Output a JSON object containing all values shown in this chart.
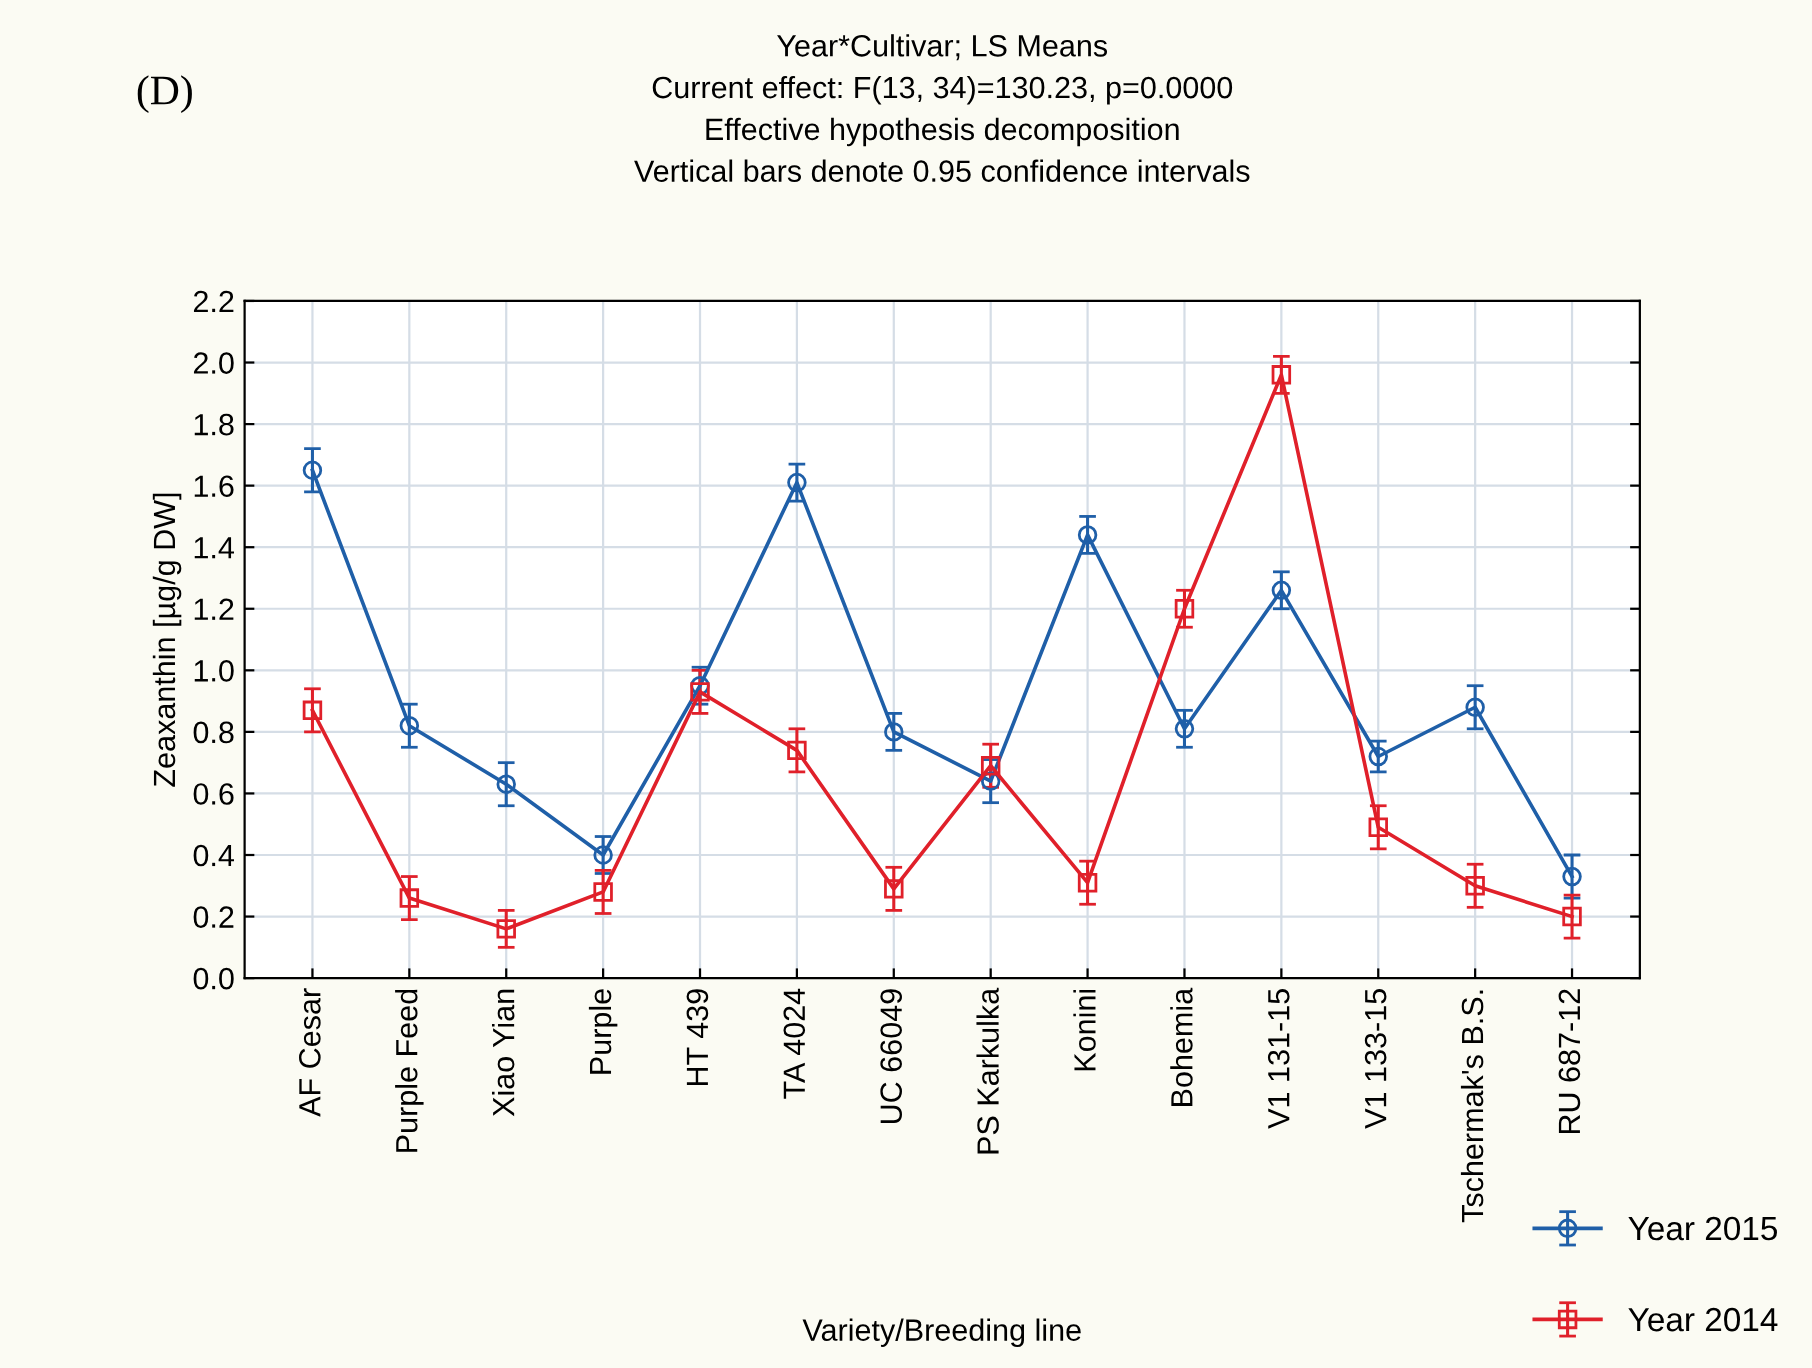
{
  "chart_data": {
    "type": "line",
    "title": "Year*Cultivar; LS Means\nCurrent effect: F(13, 34)=130.23, p=0.0000\nEffective hypothesis decomposition\nVertical bars denote 0.95 confidence intervals",
    "annotations": [
      "(D)"
    ],
    "xlabel": "Variety/Breeding line",
    "ylabel": "Zeaxanthin [µg/g DW]",
    "categories": [
      "AF Cesar",
      "Purple Feed",
      "Xiao Yian",
      "Purple",
      "HT 439",
      "TA 4024",
      "UC 66049",
      "PS Karkulka",
      "Konini",
      "Bohemia",
      "V1 131-15",
      "V1 133-15",
      "Tschermak's B.S.",
      "RU 687-12"
    ],
    "series": [
      {
        "name": "Year 2015",
        "color": "#1f5fa8",
        "marker": "circle",
        "values": [
          1.65,
          0.82,
          0.63,
          0.4,
          0.95,
          1.61,
          0.8,
          0.64,
          1.44,
          0.81,
          1.26,
          0.72,
          0.88,
          0.33
        ],
        "errors": [
          0.07,
          0.07,
          0.07,
          0.06,
          0.06,
          0.06,
          0.06,
          0.07,
          0.06,
          0.06,
          0.06,
          0.05,
          0.07,
          0.07
        ]
      },
      {
        "name": "Year 2014",
        "color": "#e0202a",
        "marker": "square",
        "values": [
          0.87,
          0.26,
          0.16,
          0.28,
          0.93,
          0.74,
          0.29,
          0.69,
          0.31,
          1.2,
          1.96,
          0.49,
          0.3,
          0.2
        ],
        "errors": [
          0.07,
          0.07,
          0.06,
          0.07,
          0.07,
          0.07,
          0.07,
          0.07,
          0.07,
          0.06,
          0.06,
          0.07,
          0.07,
          0.07
        ]
      }
    ],
    "ylim": [
      0,
      2.2
    ],
    "yticks": [
      {
        "value": 0,
        "label": "0.0"
      },
      0.2,
      0.4,
      0.6,
      0.8,
      {
        "value": 1,
        "label": "1.0"
      },
      1.2,
      1.4,
      1.6,
      1.8,
      {
        "value": 2,
        "label": "2.0"
      },
      2.2
    ],
    "grid": true,
    "legend": "bottom right",
    "line_style": "solid"
  }
}
